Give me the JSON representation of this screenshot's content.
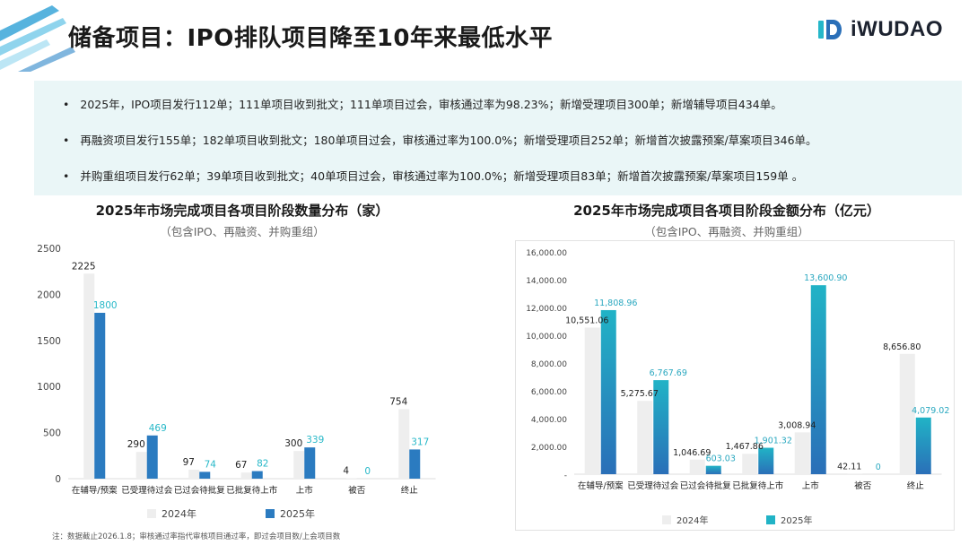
{
  "header": {
    "title": "储备项目：IPO排队项目降至10年来最低水平",
    "logo_text": "iWUDAO"
  },
  "bullets": [
    "2025年，IPO项目发行112单；111单项目收到批文；111单项目过会，审核通过率为98.23%；新增受理项目300单；新增辅导项目434单。",
    "再融资项目发行155单；182单项目收到批文；180单项目过会，审核通过率为100.0%；新增受理项目252单；新增首次披露预案/草案项目346单。",
    "并购重组项目发行62单；39单项目收到批文；40单项目过会，审核通过率为100.0%；新增受理项目83单；新增首次披露预案/草案项目159单 。"
  ],
  "note": "注：数据截止2026.1.8；审核通过率指代审核项目通过率，即过会项目数/上会项目数",
  "colors": {
    "y2024": "#eeeeee",
    "y2025_left": "#2b7bc0",
    "y2025_label_left": "#27b8c8",
    "y2025_right_top": "#21b3c6",
    "y2025_right_bottom": "#2a6fb8",
    "bullet_bg": "#eaf6f7"
  },
  "chart_data": [
    {
      "type": "bar",
      "title": "2025年市场完成项目各项目阶段数量分布（家）",
      "subtitle": "（包含IPO、再融资、并购重组）",
      "categories": [
        "在辅导/预案",
        "已受理待过会",
        "已过会待批复",
        "已批复待上市",
        "上市",
        "被否",
        "终止"
      ],
      "series": [
        {
          "name": "2024年",
          "values": [
            2225,
            290,
            97,
            67,
            300,
            4,
            754
          ],
          "labels": [
            "2225",
            "290",
            "97",
            "67",
            "300",
            "4",
            "754"
          ]
        },
        {
          "name": "2025年",
          "values": [
            1800,
            469,
            74,
            82,
            339,
            0,
            317
          ],
          "labels": [
            "1800",
            "469",
            "74",
            "82",
            "339",
            "0",
            "317"
          ]
        }
      ],
      "ylim": [
        0,
        2500
      ],
      "yticks": [
        0,
        500,
        1000,
        1500,
        2000,
        2500
      ],
      "ytick_labels": [
        "0",
        "500",
        "1000",
        "1500",
        "2000",
        "2500"
      ],
      "legend": "bottom"
    },
    {
      "type": "bar",
      "title": "2025年市场完成项目各项目阶段金额分布（亿元）",
      "subtitle": "（包含IPO、再融资、并购重组）",
      "categories": [
        "在辅导/预案",
        "已受理待过会",
        "已过会待批复",
        "已批复待上市",
        "上市",
        "被否",
        "终止"
      ],
      "series": [
        {
          "name": "2024年",
          "values": [
            10551.06,
            5275.67,
            1046.69,
            1467.86,
            3008.94,
            42.11,
            8656.8
          ],
          "labels": [
            "10,551.06",
            "5,275.67",
            "1,046.69",
            "1,467.86",
            "3,008.94",
            "42.11",
            "8,656.80"
          ]
        },
        {
          "name": "2025年",
          "values": [
            11808.96,
            6767.69,
            603.03,
            1901.32,
            13600.9,
            0,
            4079.02
          ],
          "labels": [
            "11,808.96",
            "6,767.69",
            "603.03",
            "1,901.32",
            "13,600.90",
            "0",
            "4,079.02"
          ]
        }
      ],
      "ylim": [
        0,
        16000
      ],
      "yticks": [
        0,
        2000,
        4000,
        6000,
        8000,
        10000,
        12000,
        14000,
        16000
      ],
      "ytick_labels": [
        "-",
        "2,000.00",
        "4,000.00",
        "6,000.00",
        "8,000.00",
        "10,000.00",
        "12,000.00",
        "14,000.00",
        "16,000.00"
      ],
      "legend": "bottom"
    }
  ]
}
